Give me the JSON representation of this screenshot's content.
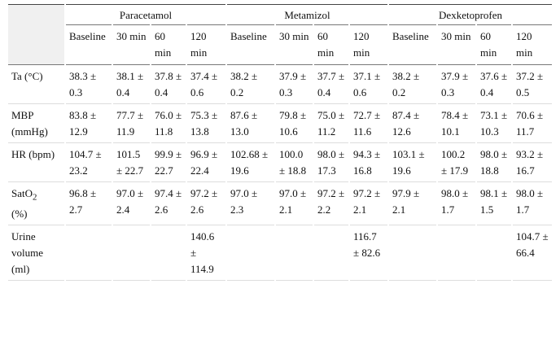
{
  "table": {
    "groups": [
      "Paracetamol",
      "Metamizol",
      "Dexketoprofen"
    ],
    "columns": [
      "Baseline",
      "30 min",
      "60 min",
      "120 min",
      "Baseline",
      "30 min",
      "60 min",
      "120 min",
      "Baseline",
      "30 min",
      "60 min",
      "120 min"
    ],
    "rows": [
      {
        "label": "Ta (°C)",
        "cells": [
          "38.3 ± 0.3",
          "38.1 ± 0.4",
          "37.8 ± 0.4",
          "37.4 ± 0.6",
          "38.2 ± 0.2",
          "37.9 ± 0.3",
          "37.7 ± 0.4",
          "37.1 ± 0.6",
          "38.2 ± 0.2",
          "37.9 ± 0.3",
          "37.6 ± 0.4",
          "37.2 ± 0.5"
        ]
      },
      {
        "label": "MBP (mmHg)",
        "cells": [
          "83.8 ± 12.9",
          "77.7 ± 11.9",
          "76.0 ± 11.8",
          "75.3 ± 13.8",
          "87.6 ± 13.0",
          "79.8 ± 10.6",
          "75.0 ± 11.2",
          "72.7 ± 11.6",
          "87.4 ± 12.6",
          "78.4 ± 10.1",
          "73.1 ± 10.3",
          "70.6 ± 11.7"
        ]
      },
      {
        "label": "HR (bpm)",
        "cells": [
          "104.7 ± 23.2",
          "101.5 ± 22.7",
          "99.9 ± 22.7",
          "96.9 ± 22.4",
          "102.68 ± 19.6",
          "100.0 ± 18.8",
          "98.0 ± 17.3",
          "94.3 ± 16.8",
          "103.1 ± 19.6",
          "100.2 ± 17.9",
          "98.0 ± 18.8",
          "93.2 ± 16.7"
        ]
      },
      {
        "label": "SatO",
        "label_sub": "2",
        "label_unit": "(%)",
        "cells": [
          "96.8 ± 2.7",
          "97.0 ± 2.4",
          "97.4 ± 2.6",
          "97.2 ± 2.6",
          "97.0 ± 2.3",
          "97.0 ± 2.1",
          "97.2 ± 2.2",
          "97.2 ± 2.1",
          "97.9 ± 2.1",
          "98.0 ± 1.7",
          "98.1 ± 1.5",
          "98.0 ± 1.7"
        ]
      },
      {
        "label": "Urine volume (ml)",
        "cells": [
          null,
          null,
          null,
          "140.6 ± 114.9",
          null,
          null,
          null,
          "116.7 ± 82.6",
          null,
          null,
          null,
          "104.7 ± 66.4"
        ]
      }
    ]
  }
}
